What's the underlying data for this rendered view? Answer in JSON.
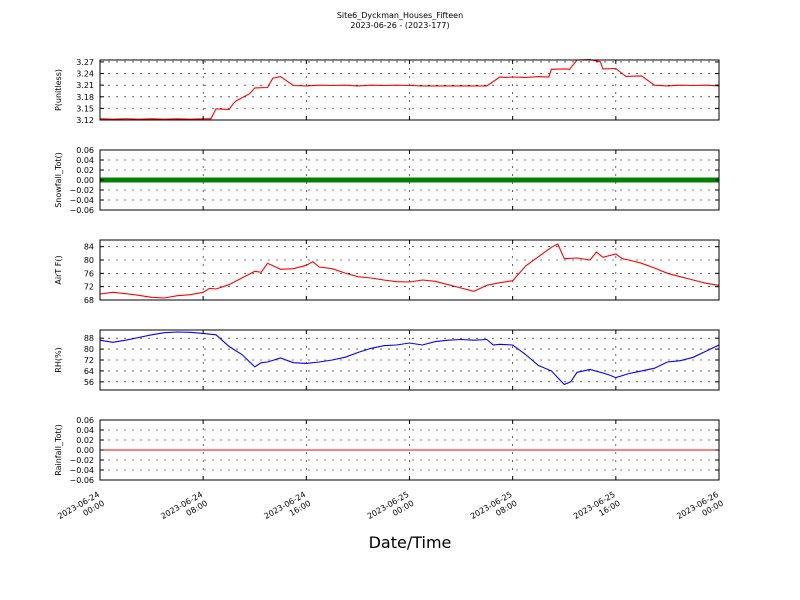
{
  "figure": {
    "title": "Site6_Dyckman_Houses_Fifteen",
    "subtitle": "2023-06-26 - (2023-177)",
    "xlabel": "Date/Time"
  },
  "chart_data": [
    {
      "type": "line",
      "ylabel": "P(unitless)",
      "ylim": [
        3.12,
        3.275
      ],
      "yticks": [
        3.12,
        3.15,
        3.18,
        3.21,
        3.24,
        3.27
      ],
      "ytick_labels": [
        "3.12",
        "3.15",
        "3.18",
        "3.21",
        "3.24",
        "3.27"
      ],
      "xlim": [
        0,
        48
      ],
      "grid": true,
      "series": [
        {
          "color": "#ff0000",
          "x": [
            0,
            1,
            2,
            3,
            4,
            5,
            6,
            7,
            8,
            8.6,
            9,
            10,
            10.4,
            10.6,
            11.6,
            12,
            13,
            13.4,
            14,
            15,
            16,
            17,
            18,
            19,
            20,
            21,
            22,
            23,
            24,
            25,
            30,
            31,
            31.4,
            32,
            33,
            34,
            34.8,
            35,
            36,
            36.4,
            37,
            38,
            38.8,
            39,
            40,
            40.8,
            41,
            42,
            43,
            44,
            45,
            46,
            47,
            48
          ],
          "y": [
            3.123,
            3.122,
            3.123,
            3.122,
            3.123,
            3.122,
            3.123,
            3.122,
            3.123,
            3.123,
            3.149,
            3.147,
            3.165,
            3.17,
            3.188,
            3.203,
            3.204,
            3.228,
            3.232,
            3.209,
            3.208,
            3.21,
            3.209,
            3.21,
            3.208,
            3.21,
            3.209,
            3.21,
            3.209,
            3.208,
            3.208,
            3.231,
            3.23,
            3.231,
            3.23,
            3.232,
            3.231,
            3.251,
            3.252,
            3.251,
            3.275,
            3.276,
            3.27,
            3.252,
            3.253,
            3.232,
            3.233,
            3.234,
            3.21,
            3.208,
            3.21,
            3.209,
            3.21,
            3.208
          ]
        }
      ]
    },
    {
      "type": "scatter",
      "ylabel": "Snowfall_Tot()",
      "ylim": [
        -0.06,
        0.06
      ],
      "yticks": [
        -0.06,
        -0.04,
        -0.02,
        0.0,
        0.02,
        0.04,
        0.06
      ],
      "ytick_labels": [
        "−0.06",
        "−0.04",
        "−0.02",
        "0.00",
        "0.02",
        "0.04",
        "0.06"
      ],
      "xlim": [
        0,
        48
      ],
      "grid": true,
      "series": [
        {
          "color": "#008000",
          "constant": 0.0,
          "x_range": [
            0,
            48
          ]
        }
      ]
    },
    {
      "type": "line",
      "ylabel": "AirT F()",
      "ylim": [
        68,
        86
      ],
      "yticks": [
        68,
        72,
        76,
        80,
        84
      ],
      "ytick_labels": [
        "68",
        "72",
        "76",
        "80",
        "84"
      ],
      "xlim": [
        0,
        48
      ],
      "grid": true,
      "series": [
        {
          "color": "#ff0000",
          "x": [
            0,
            1,
            2,
            3,
            4,
            5,
            6,
            7,
            8,
            8.5,
            9,
            10,
            11,
            12,
            12.5,
            13,
            14,
            15,
            16,
            16.5,
            17,
            18,
            19,
            20,
            21,
            22,
            23,
            24,
            25,
            26,
            27,
            28,
            29,
            30,
            31,
            32,
            33,
            34,
            35,
            35.5,
            36,
            37,
            38,
            38.5,
            39,
            40,
            40.5,
            41,
            42,
            43,
            44,
            45,
            46,
            47,
            48
          ],
          "y": [
            69.8,
            70.3,
            69.9,
            69.4,
            68.8,
            68.6,
            69.3,
            69.6,
            70.3,
            71.5,
            71.3,
            72.6,
            74.6,
            76.6,
            76.3,
            79.0,
            77.2,
            77.4,
            78.4,
            79.5,
            77.9,
            77.4,
            76.1,
            75.0,
            74.6,
            74.0,
            73.5,
            73.4,
            74.0,
            73.6,
            72.6,
            71.6,
            70.6,
            72.4,
            73.2,
            73.8,
            78.2,
            81.0,
            83.8,
            84.8,
            80.4,
            80.6,
            80.0,
            82.4,
            80.8,
            81.8,
            80.4,
            80.0,
            79.0,
            77.6,
            76.0,
            75.0,
            74.0,
            73.0,
            72.4
          ]
        }
      ]
    },
    {
      "type": "line",
      "ylabel": "RH(%)",
      "ylim": [
        50,
        94
      ],
      "yticks": [
        56,
        64,
        72,
        80,
        88
      ],
      "ytick_labels": [
        "56",
        "64",
        "72",
        "80",
        "88"
      ],
      "xlim": [
        0,
        48
      ],
      "grid": true,
      "series": [
        {
          "color": "#0000ff",
          "x": [
            0,
            1,
            2,
            3,
            4,
            5,
            6,
            7,
            8,
            9,
            10,
            11,
            12,
            12.5,
            13,
            14,
            15,
            16,
            17,
            18,
            19,
            20,
            21,
            22,
            23,
            24,
            25,
            26,
            27,
            28,
            29,
            30,
            30.5,
            31,
            32,
            33,
            34,
            35,
            35.5,
            36,
            36.5,
            37,
            38,
            39,
            39.5,
            40,
            41,
            42,
            43,
            44,
            45,
            46,
            47,
            48
          ],
          "y": [
            86.5,
            85.0,
            86.5,
            88.5,
            90.5,
            92.0,
            92.5,
            92.3,
            91.5,
            90.5,
            82.0,
            76.0,
            67.0,
            70.0,
            70.5,
            73.5,
            70.0,
            69.5,
            70.5,
            72.0,
            74.0,
            77.5,
            80.5,
            82.5,
            83.0,
            84.5,
            83.0,
            85.5,
            86.5,
            87.0,
            86.5,
            87.0,
            83.0,
            83.5,
            83.0,
            76.0,
            68.0,
            64.0,
            59.0,
            54.0,
            56.0,
            63.0,
            65.0,
            62.5,
            61.0,
            59.0,
            62.0,
            64.0,
            66.0,
            70.5,
            71.5,
            74.0,
            78.5,
            83.0
          ]
        }
      ]
    },
    {
      "type": "line",
      "ylabel": "Rainfall_Tot()",
      "ylim": [
        -0.06,
        0.06
      ],
      "yticks": [
        -0.06,
        -0.04,
        -0.02,
        0.0,
        0.02,
        0.04,
        0.06
      ],
      "ytick_labels": [
        "−0.06",
        "−0.04",
        "−0.02",
        "0.00",
        "0.02",
        "0.04",
        "0.06"
      ],
      "xlim": [
        0,
        48
      ],
      "grid": true,
      "series": [
        {
          "color": "#ff0000",
          "x": [
            0,
            48
          ],
          "y": [
            0.0,
            0.0
          ]
        }
      ]
    }
  ],
  "x_axis": {
    "ticks": [
      0,
      8,
      16,
      24,
      32,
      40,
      48
    ],
    "tick_labels": [
      [
        "2023-06-24",
        "00:00"
      ],
      [
        "2023-06-24",
        "08:00"
      ],
      [
        "2023-06-24",
        "16:00"
      ],
      [
        "2023-06-25",
        "00:00"
      ],
      [
        "2023-06-25",
        "08:00"
      ],
      [
        "2023-06-25",
        "16:00"
      ],
      [
        "2023-06-26",
        "00:00"
      ]
    ]
  }
}
